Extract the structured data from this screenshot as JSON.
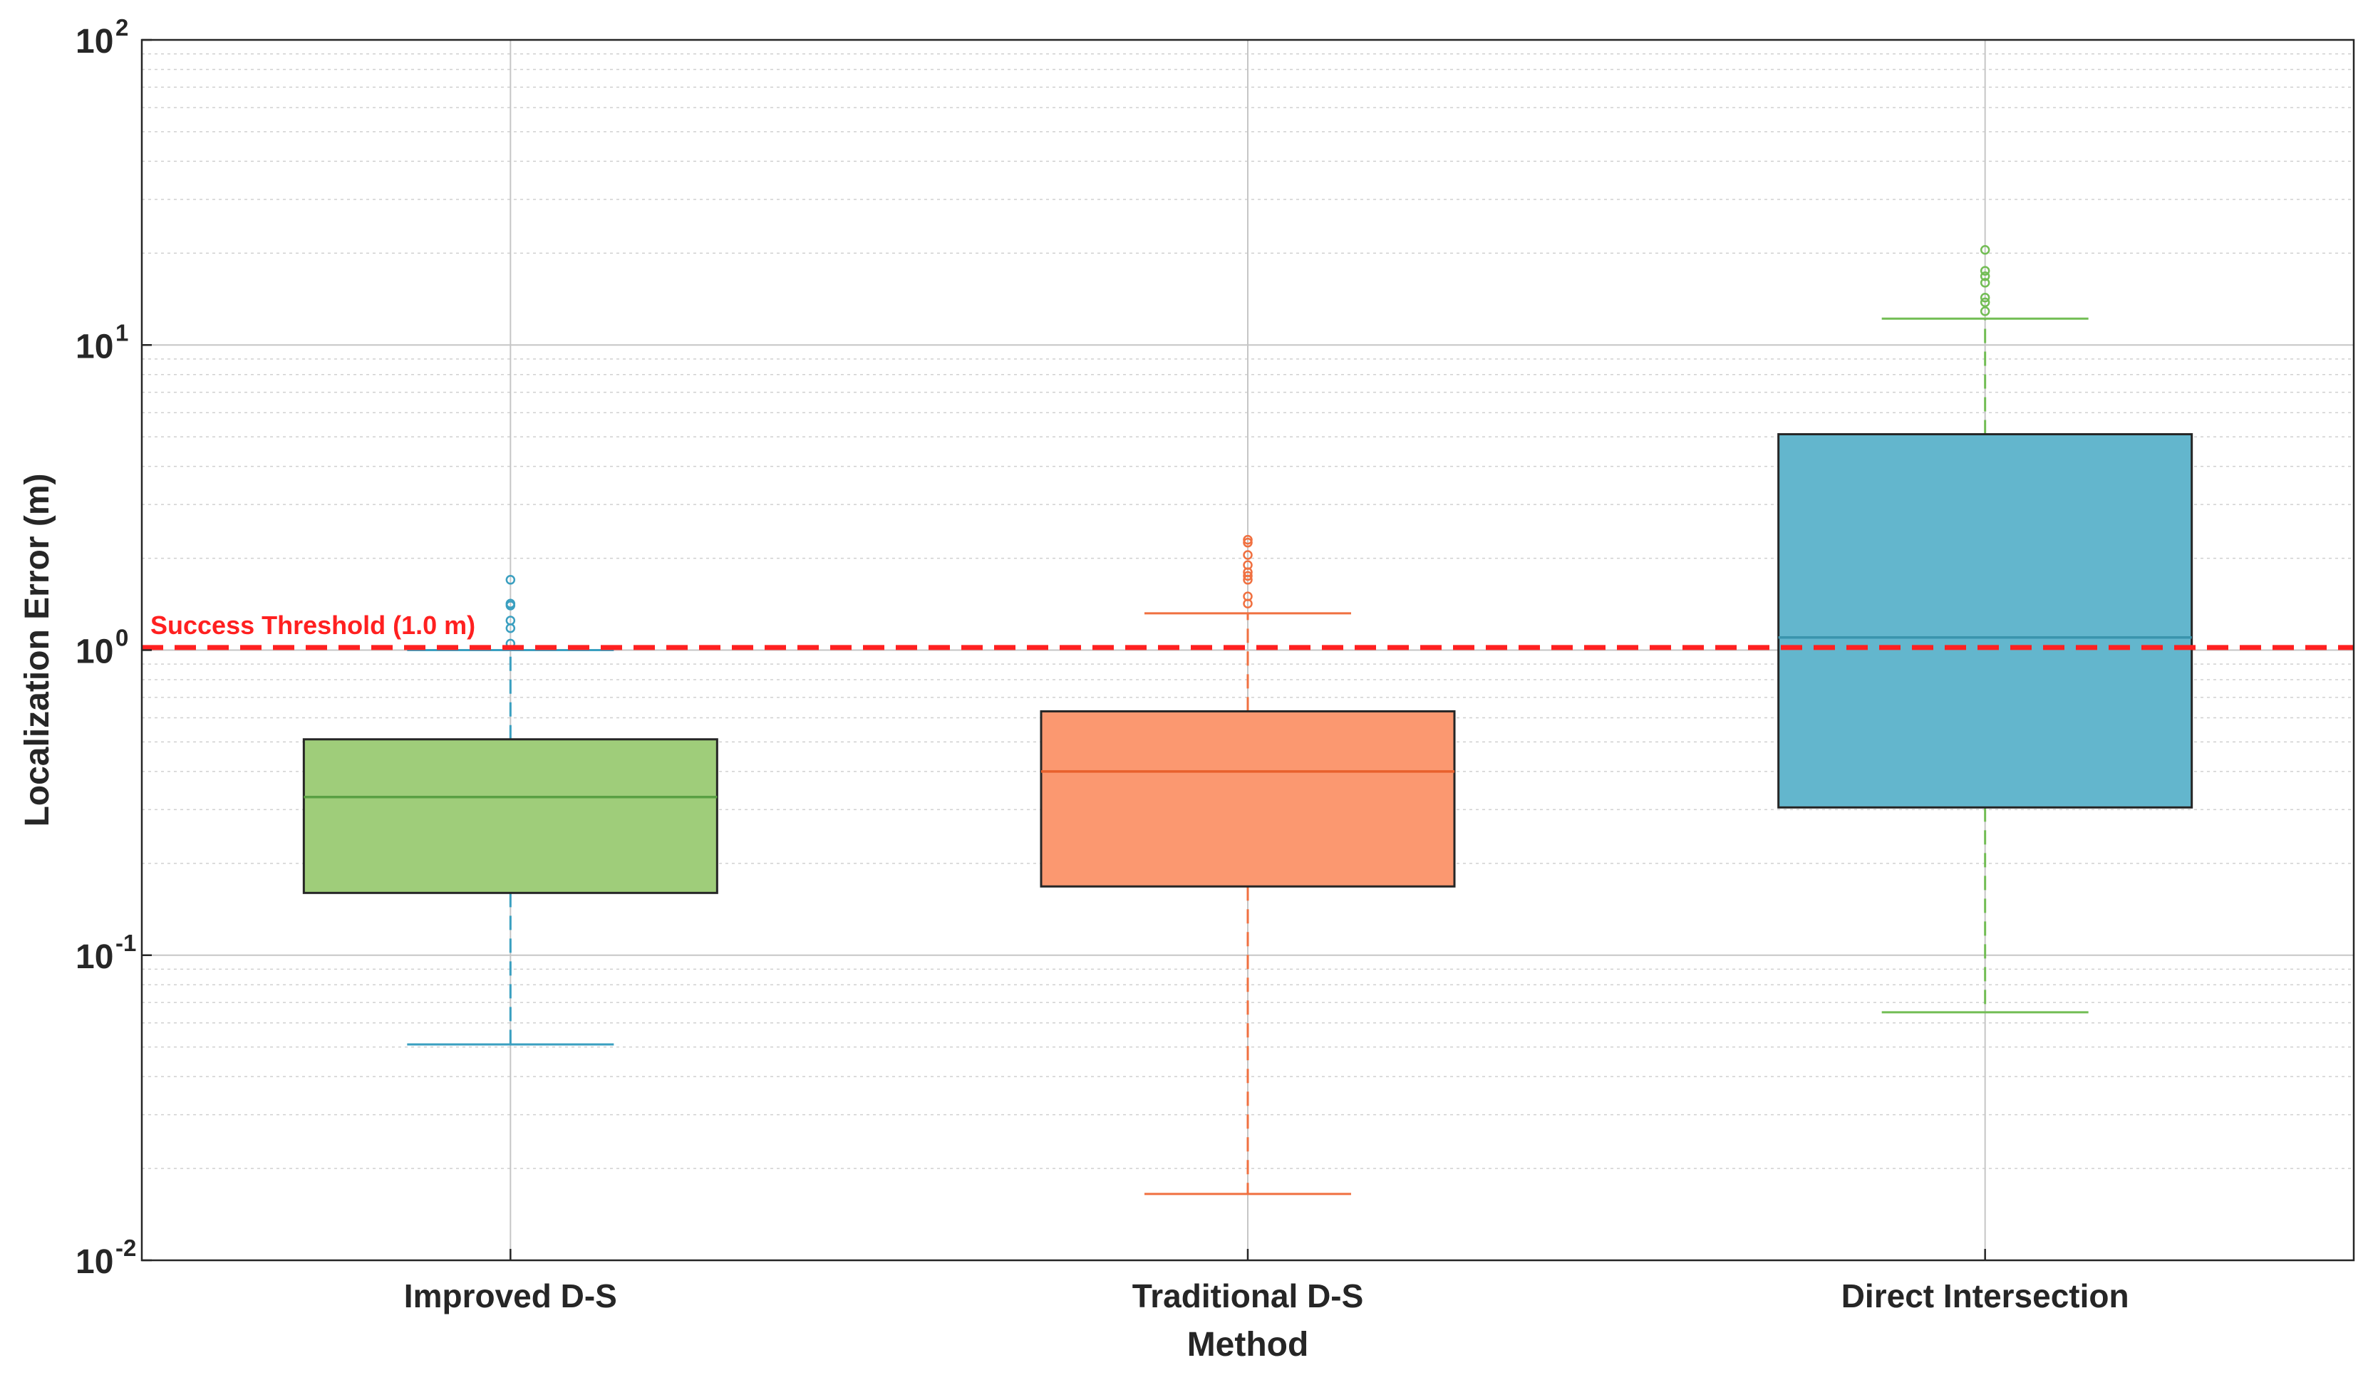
{
  "chart_data": {
    "type": "box",
    "title": "",
    "xlabel": "Method",
    "ylabel": "Localization Error (m)",
    "yscale": "log",
    "ylim": [
      0.01,
      100
    ],
    "grid": true,
    "minor_grid": true,
    "ytick_labels": [
      {
        "value": 0.01,
        "base": "10",
        "exp": "-2"
      },
      {
        "value": 0.1,
        "base": "10",
        "exp": "-1"
      },
      {
        "value": 1,
        "base": "10",
        "exp": "0"
      },
      {
        "value": 10,
        "base": "10",
        "exp": "1"
      },
      {
        "value": 100,
        "base": "10",
        "exp": "2"
      }
    ],
    "categories": [
      "Improved D-S",
      "Traditional D-S",
      "Direct Intersection"
    ],
    "boxes": [
      {
        "name": "Improved D-S",
        "whisker_low": 0.051,
        "q1": 0.16,
        "median": 0.33,
        "q3": 0.51,
        "whisker_high": 1.0,
        "outliers": [
          1.05,
          1.18,
          1.25,
          1.4,
          1.42,
          1.7
        ],
        "box_color": "#9fcd7a",
        "line_color": "#5aa043",
        "whisker_color": "#3a9fc0"
      },
      {
        "name": "Traditional D-S",
        "whisker_low": 0.0165,
        "q1": 0.168,
        "median": 0.4,
        "q3": 0.63,
        "whisker_high": 1.32,
        "outliers": [
          1.42,
          1.5,
          1.7,
          1.75,
          1.8,
          1.9,
          2.05,
          2.25,
          2.3
        ],
        "box_color": "#fb9870",
        "line_color": "#e8602c",
        "whisker_color": "#f07040"
      },
      {
        "name": "Direct Intersection",
        "whisker_low": 0.065,
        "q1": 0.305,
        "median": 1.1,
        "q3": 5.1,
        "whisker_high": 12.2,
        "outliers": [
          12.9,
          13.8,
          14.3,
          16.0,
          16.8,
          17.5,
          20.5
        ],
        "box_color": "#63b6cd",
        "line_color": "#3a94ad",
        "whisker_color": "#72bd54"
      }
    ],
    "threshold": {
      "value": 1.02,
      "label": "Success Threshold (1.0 m)",
      "color": "#ff2020",
      "style": "dashed"
    }
  }
}
